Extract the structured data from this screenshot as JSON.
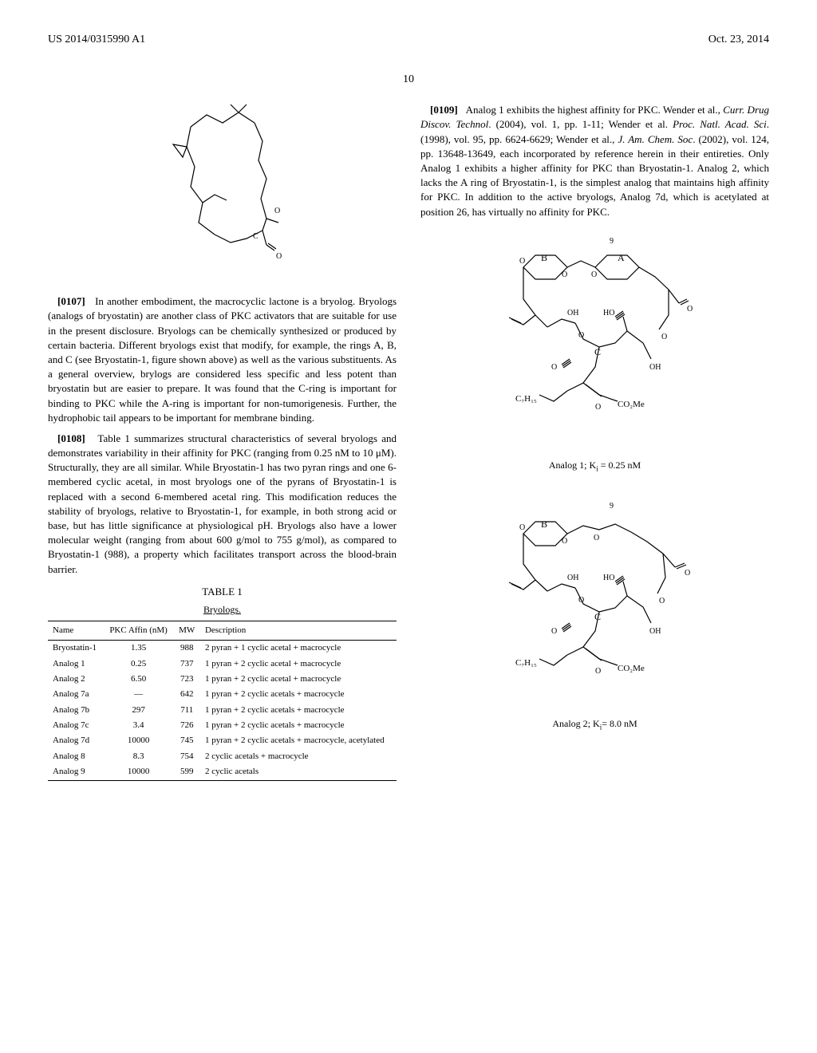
{
  "header": {
    "left": "US 2014/0315990 A1",
    "right": "Oct. 23, 2014"
  },
  "page_number": "10",
  "left_col": {
    "para107": {
      "num": "[0107]",
      "text": "In another embodiment, the macrocyclic lactone is a bryolog. Bryologs (analogs of bryostatin) are another class of PKC activators that are suitable for use in the present disclosure. Bryologs can be chemically synthesized or produced by certain bacteria. Different bryologs exist that modify, for example, the rings A, B, and C (see Bryostatin-1, figure shown above) as well as the various substituents. As a general overview, brylogs are considered less specific and less potent than bryostatin but are easier to prepare. It was found that the C-ring is important for binding to PKC while the A-ring is important for non-tumorigenesis. Further, the hydrophobic tail appears to be important for membrane binding."
    },
    "para108": {
      "num": "[0108]",
      "text": "Table 1 summarizes structural characteristics of several bryologs and demonstrates variability in their affinity for PKC (ranging from 0.25 nM to 10 μM). Structurally, they are all similar. While Bryostatin-1 has two pyran rings and one 6-membered cyclic acetal, in most bryologs one of the pyrans of Bryostatin-1 is replaced with a second 6-membered acetal ring. This modification reduces the stability of bryologs, relative to Bryostatin-1, for example, in both strong acid or base, but has little significance at physiological pH. Bryologs also have a lower molecular weight (ranging from about 600 g/mol to 755 g/mol), as compared to Bryostatin-1 (988), a property which facilitates transport across the blood-brain barrier."
    }
  },
  "right_col": {
    "para109": {
      "num": "[0109]",
      "text_parts": [
        "Analog 1 exhibits the highest affinity for PKC. Wender et al., ",
        "Curr. Drug Discov. Technol",
        ". (2004), vol. 1, pp. 1-11; Wender et al. ",
        "Proc. Natl. Acad. Sci",
        ". (1998), vol. 95, pp. 6624-6629; Wender et al., ",
        "J. Am. Chem. Soc",
        ". (2002), vol. 124, pp. 13648-13649, each incorporated by reference herein in their entireties. Only Analog 1 exhibits a higher affinity for PKC than Bryostatin-1. Analog 2, which lacks the A ring of Bryostatin-1, is the simplest analog that maintains high affinity for PKC. In addition to the active bryologs, Analog 7d, which is acetylated at position 26, has virtually no affinity for PKC."
      ]
    },
    "caption1": "Analog 1; K",
    "caption1_sub": "i",
    "caption1_rest": " = 0.25 nM",
    "caption2": "Analog 2; K",
    "caption2_sub": "i",
    "caption2_rest": "= 8.0 nM"
  },
  "table": {
    "title": "TABLE 1",
    "subtitle": "Bryologs.",
    "columns": [
      "Name",
      "PKC Affin (nM)",
      "MW",
      "Description"
    ],
    "rows": [
      [
        "Bryostatin-1",
        "1.35",
        "988",
        "2 pyran + 1 cyclic acetal + macrocycle"
      ],
      [
        "Analog 1",
        "0.25",
        "737",
        "1 pyran + 2 cyclic acetal + macrocycle"
      ],
      [
        "Analog 2",
        "6.50",
        "723",
        "1 pyran + 2 cyclic acetal + macrocycle"
      ],
      [
        "Analog 7a",
        "—",
        "642",
        "1 pyran + 2 cyclic acetals + macrocycle"
      ],
      [
        "Analog 7b",
        "297",
        "711",
        "1 pyran + 2 cyclic acetals + macrocycle"
      ],
      [
        "Analog 7c",
        "3.4",
        "726",
        "1 pyran + 2 cyclic acetals + macrocycle"
      ],
      [
        "Analog 7d",
        "10000",
        "745",
        "1 pyran + 2 cyclic acetals + macrocycle, acetylated"
      ],
      [
        "Analog 8",
        "8.3",
        "754",
        "2 cyclic acetals + macrocycle"
      ],
      [
        "Analog 9",
        "10000",
        "599",
        "2 cyclic acetals"
      ]
    ]
  },
  "molecule_labels": {
    "B": "B",
    "A": "A",
    "C": "C",
    "OH": "OH",
    "HO": "HO",
    "O": "O",
    "C7H15": "C₇H₁₅",
    "CO2Me": "CO₂Me",
    "nine": "9",
    "c_label": "C"
  }
}
